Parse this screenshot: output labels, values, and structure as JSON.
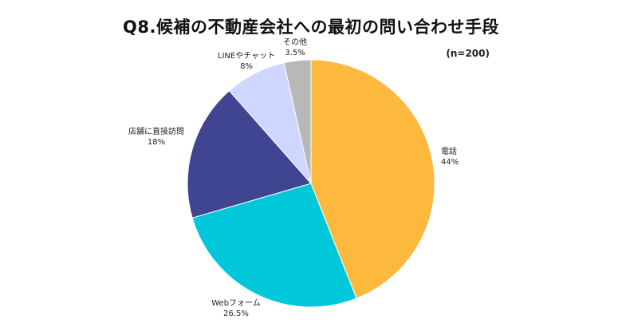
{
  "chart_data": {
    "type": "pie",
    "title": "Q8.候補の不動産会社への最初の問い合わせ手段",
    "note": "(n=200)",
    "slices": [
      {
        "label": "電話",
        "value": 44,
        "value_label": "44%",
        "color": "#FDB83E"
      },
      {
        "label": "Webフォーム",
        "value": 26.5,
        "value_label": "26.5%",
        "color": "#00C8DA"
      },
      {
        "label": "店舗に直接訪問",
        "value": 18,
        "value_label": "18%",
        "color": "#404591"
      },
      {
        "label": "LINEやチャット",
        "value": 8,
        "value_label": "8%",
        "color": "#CFD6FF"
      },
      {
        "label": "その他",
        "value": 3.5,
        "value_label": "3.5%",
        "color": "#B8B8B8"
      }
    ]
  }
}
